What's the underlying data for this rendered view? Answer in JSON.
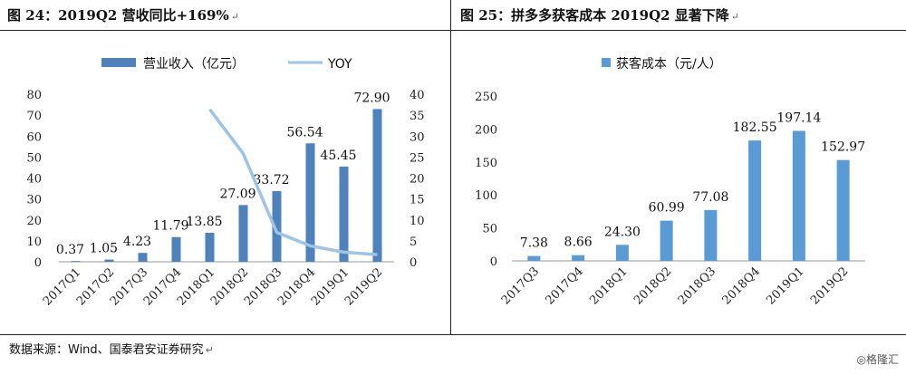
{
  "titles": {
    "left": "图 24：2019Q2 营收同比+169%",
    "right": "图 25：拼多多获客成本 2019Q2 显著下降",
    "para_mark": "↵"
  },
  "source": "数据来源：Wind、国泰君安证券研究",
  "watermark": "◎格隆汇",
  "colors": {
    "bar": "#4f81bd",
    "bar_right": "#5b9bd5",
    "line": "#9dc3e6"
  },
  "chart_data": [
    {
      "type": "bar",
      "categories": [
        "2017Q1",
        "2017Q2",
        "2017Q3",
        "2017Q4",
        "2018Q1",
        "2018Q2",
        "2018Q3",
        "2018Q4",
        "2019Q1",
        "2019Q2"
      ],
      "series": [
        {
          "name": "营业收入（亿元）",
          "type": "bar",
          "axis": "left",
          "values": [
            0.37,
            1.05,
            4.23,
            11.79,
            13.85,
            27.09,
            33.72,
            56.54,
            45.45,
            72.9
          ],
          "labels": [
            "0.37",
            "1.05",
            "4.23",
            "11.79",
            "13.85",
            "27.09",
            "33.72",
            "56.54",
            "45.45",
            "72.90"
          ]
        },
        {
          "name": "YOY",
          "type": "line",
          "axis": "right",
          "values": [
            null,
            null,
            null,
            null,
            36.4,
            25.8,
            7.0,
            3.8,
            2.3,
            1.7
          ]
        }
      ],
      "ylim": [
        0,
        80
      ],
      "yticks": [
        0,
        10,
        20,
        30,
        40,
        50,
        60,
        70,
        80
      ],
      "y2lim": [
        0,
        40
      ],
      "y2ticks": [
        0,
        5,
        10,
        15,
        20,
        25,
        30,
        35,
        40
      ],
      "legend": "top"
    },
    {
      "type": "bar",
      "categories": [
        "2017Q3",
        "2017Q4",
        "2018Q1",
        "2018Q2",
        "2018Q3",
        "2018Q4",
        "2019Q1",
        "2019Q2"
      ],
      "series": [
        {
          "name": "获客成本（元/人）",
          "type": "bar",
          "values": [
            7.38,
            8.66,
            24.3,
            60.99,
            77.08,
            182.55,
            197.14,
            152.97
          ],
          "labels": [
            "7.38",
            "8.66",
            "24.30",
            "60.99",
            "77.08",
            "182.55",
            "197.14",
            "152.97"
          ]
        }
      ],
      "ylim": [
        0,
        250
      ],
      "yticks": [
        0,
        50,
        100,
        150,
        200,
        250
      ],
      "legend": "top"
    }
  ]
}
